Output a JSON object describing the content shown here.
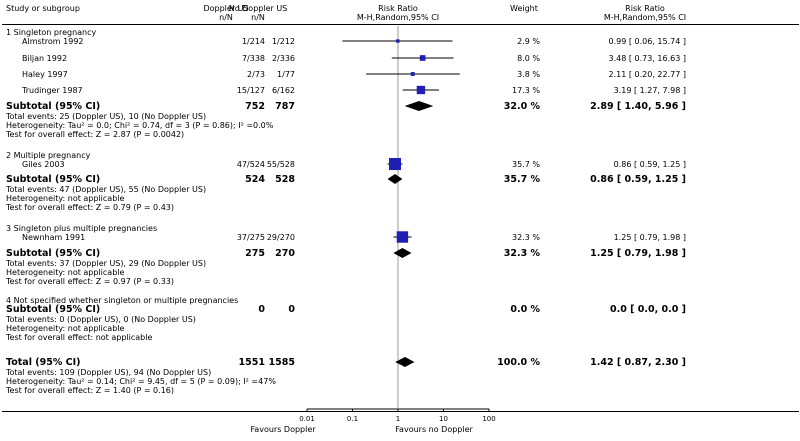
{
  "header": {
    "study": "Study or subgroup",
    "exp": "Doppler US",
    "ctrl": "No Doppler US",
    "exp_sub": "n/N",
    "ctrl_sub": "n/N",
    "rr1": "Risk Ratio",
    "rr1_sub": "M-H,Random,95% CI",
    "weight": "Weight",
    "rr2": "Risk Ratio",
    "rr2_sub": "M-H,Random,95% CI"
  },
  "groups": [
    {
      "title": "1 Singleton pregnancy",
      "studies": [
        {
          "name": "Almstrom 1992",
          "exp": "1/214",
          "ctrl": "1/212",
          "weight": "2.9 %",
          "ci": "0.99 [ 0.06, 15.74 ]"
        },
        {
          "name": "Biljan 1992",
          "exp": "7/338",
          "ctrl": "2/336",
          "weight": "8.0 %",
          "ci": "3.48 [ 0.73, 16.63 ]"
        },
        {
          "name": "Haley 1997",
          "exp": "2/73",
          "ctrl": "1/77",
          "weight": "3.8 %",
          "ci": "2.11 [ 0.20, 22.77 ]"
        },
        {
          "name": "Trudinger 1987",
          "exp": "15/127",
          "ctrl": "6/162",
          "weight": "17.3 %",
          "ci": "3.19 [ 1.27, 7.98 ]"
        }
      ],
      "subtotal": {
        "label": "Subtotal (95% CI)",
        "exp": "752",
        "ctrl": "787",
        "weight": "32.0 %",
        "ci": "2.89 [ 1.40, 5.96 ]"
      },
      "notes": [
        "Total events: 25 (Doppler US), 10 (No Doppler US)",
        "Heterogeneity: Tau² = 0.0; Chi² = 0.74, df = 3 (P = 0.86); I² =0.0%",
        "Test for overall effect: Z = 2.87 (P = 0.0042)"
      ]
    },
    {
      "title": "2 Multiple pregnancy",
      "studies": [
        {
          "name": "Giles 2003",
          "exp": "47/524",
          "ctrl": "55/528",
          "weight": "35.7 %",
          "ci": "0.86 [ 0.59, 1.25 ]"
        }
      ],
      "subtotal": {
        "label": "Subtotal (95% CI)",
        "exp": "524",
        "ctrl": "528",
        "weight": "35.7 %",
        "ci": "0.86 [ 0.59, 1.25 ]"
      },
      "notes": [
        "Total events: 47 (Doppler US), 55 (No Doppler US)",
        "Heterogeneity: not applicable",
        "Test for overall effect: Z = 0.79 (P = 0.43)"
      ]
    },
    {
      "title": "3 Singleton plus multiple pregnancies",
      "studies": [
        {
          "name": "Newnham 1991",
          "exp": "37/275",
          "ctrl": "29/270",
          "weight": "32.3 %",
          "ci": "1.25 [ 0.79, 1.98 ]"
        }
      ],
      "subtotal": {
        "label": "Subtotal (95% CI)",
        "exp": "275",
        "ctrl": "270",
        "weight": "32.3 %",
        "ci": "1.25 [ 0.79, 1.98 ]"
      },
      "notes": [
        "Total events: 37 (Doppler US), 29 (No Doppler US)",
        "Heterogeneity: not applicable",
        "Test for overall effect: Z = 0.97 (P = 0.33)"
      ]
    },
    {
      "title": "4 Not specified whether singleton or multiple pregnancies",
      "studies": [],
      "subtotal": {
        "label": "Subtotal (95% CI)",
        "exp": "0",
        "ctrl": "0",
        "weight": "0.0 %",
        "ci": "0.0 [ 0.0, 0.0 ]"
      },
      "notes": [
        "Total events: 0 (Doppler US), 0 (No Doppler US)",
        "Heterogeneity: not applicable",
        "Test for overall effect: not applicable"
      ]
    }
  ],
  "total": {
    "label": "Total (95% CI)",
    "exp": "1551",
    "ctrl": "1585",
    "weight": "100.0 %",
    "ci": "1.42 [ 0.87, 2.30 ]",
    "notes": [
      "Total events: 109 (Doppler US), 94 (No Doppler US)",
      "Heterogeneity: Tau² = 0.14; Chi² = 9.45, df = 5 (P = 0.09); I² =47%",
      "Test for overall effect: Z = 1.40 (P = 0.16)"
    ]
  },
  "footer": {
    "favours_left": "Favours Doppler",
    "favours_right": "Favours no Doppler"
  },
  "chart_data": {
    "type": "forest",
    "scale": "log",
    "xlim": [
      0.01,
      100
    ],
    "ticks": [
      {
        "value": 0.01,
        "label": "0.01"
      },
      {
        "value": 0.1,
        "label": "0.1"
      },
      {
        "value": 1,
        "label": "1"
      },
      {
        "value": 10,
        "label": "10"
      },
      {
        "value": 100,
        "label": "100"
      }
    ],
    "null_line": 1,
    "studies": [
      {
        "name": "Almstrom 1992",
        "rr": 0.99,
        "lo": 0.06,
        "hi": 15.74,
        "weight": 2.9
      },
      {
        "name": "Biljan 1992",
        "rr": 3.48,
        "lo": 0.73,
        "hi": 16.63,
        "weight": 8.0
      },
      {
        "name": "Haley 1997",
        "rr": 2.11,
        "lo": 0.2,
        "hi": 22.77,
        "weight": 3.8
      },
      {
        "name": "Trudinger 1987",
        "rr": 3.19,
        "lo": 1.27,
        "hi": 7.98,
        "weight": 17.3
      },
      {
        "name": "Giles 2003",
        "rr": 0.86,
        "lo": 0.59,
        "hi": 1.25,
        "weight": 35.7
      },
      {
        "name": "Newnham 1991",
        "rr": 1.25,
        "lo": 0.79,
        "hi": 1.98,
        "weight": 32.3
      }
    ],
    "diamonds": [
      {
        "name": "Subtotal 1",
        "rr": 2.89,
        "lo": 1.4,
        "hi": 5.96
      },
      {
        "name": "Subtotal 2",
        "rr": 0.86,
        "lo": 0.59,
        "hi": 1.25
      },
      {
        "name": "Subtotal 3",
        "rr": 1.25,
        "lo": 0.79,
        "hi": 1.98
      },
      {
        "name": "Total",
        "rr": 1.42,
        "lo": 0.87,
        "hi": 2.3
      }
    ],
    "xlabel_left": "Favours Doppler",
    "xlabel_right": "Favours no Doppler",
    "marker_color": "#1f1fb4",
    "diamond_color": "#000000"
  }
}
